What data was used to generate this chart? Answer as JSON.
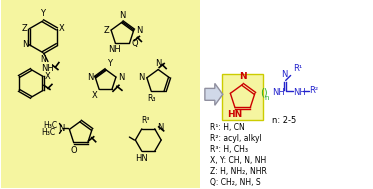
{
  "bg_left_color": "#f5f5a0",
  "bg_right_color": "#ffffff",
  "arrow_color": "#b0b8c8",
  "imidazole_color": "#cc0000",
  "chain_color": "#22aa22",
  "guanidine_color": "#2222cc",
  "text_color": "#000000",
  "label_box_color": "#f5f5a0",
  "n_label": "n: 2-5",
  "r1_label": "R¹: H, CN",
  "r2_label": "R²: acyl, alkyl",
  "r3_label": "R³: H, CH₃",
  "xy_label": "X, Y: CH, N, NH",
  "z_label": "Z: H, NH₂, NHR",
  "q_label": "Q: CH₂, NH, S"
}
